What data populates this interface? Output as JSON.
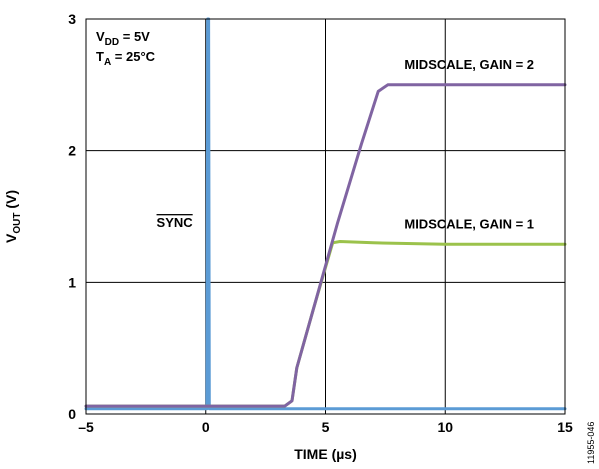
{
  "chart_data": {
    "type": "line",
    "xlabel": "TIME (µs)",
    "ylabel": {
      "prefix": "V",
      "sub": "OUT",
      "suffix": " (V)"
    },
    "xlim": [
      -5,
      15
    ],
    "ylim": [
      0,
      3
    ],
    "xticks": [
      -5,
      0,
      5,
      10,
      15
    ],
    "xtick_labels": [
      "–5",
      "0",
      "5",
      "10",
      "15"
    ],
    "yticks": [
      0,
      1,
      2,
      3
    ],
    "ytick_labels": [
      "0",
      "1",
      "2",
      "3"
    ],
    "grid": true,
    "conditions": [
      {
        "prefix": "V",
        "sub": "DD",
        "suffix": " = 5V"
      },
      {
        "prefix": "T",
        "sub": "A",
        "suffix": " = 25°C"
      }
    ],
    "figure_id": "11955-046",
    "series": [
      {
        "name": "SYNC",
        "color": "#5b9bd5",
        "x": [
          -5,
          0.05,
          0.08,
          0.12,
          0.15,
          15
        ],
        "y": [
          0.04,
          0.04,
          3.0,
          3.0,
          0.04,
          0.04
        ]
      },
      {
        "name": "MIDSCALE, GAIN = 1",
        "color": "#9bc24b",
        "x": [
          -5,
          3.3,
          3.6,
          3.8,
          4.5,
          5.3,
          5.6,
          7,
          10,
          15
        ],
        "y": [
          0.06,
          0.06,
          0.1,
          0.35,
          0.8,
          1.3,
          1.31,
          1.3,
          1.29,
          1.29
        ]
      },
      {
        "name": "MIDSCALE, GAIN = 2",
        "color": "#8064a2",
        "x": [
          -5,
          3.3,
          3.6,
          3.8,
          4.5,
          5.5,
          6.5,
          7.2,
          7.6,
          10,
          15
        ],
        "y": [
          0.06,
          0.06,
          0.1,
          0.35,
          0.8,
          1.45,
          2.05,
          2.45,
          2.5,
          2.5,
          2.5
        ]
      }
    ],
    "annotations": [
      {
        "text": "MIDSCALE, GAIN = 2",
        "x": 11.0,
        "y": 2.62
      },
      {
        "text": "MIDSCALE, GAIN = 1",
        "x": 11.0,
        "y": 1.41
      },
      {
        "text": "SYNC",
        "x": -1.3,
        "y": 1.42,
        "overline": true
      }
    ]
  }
}
